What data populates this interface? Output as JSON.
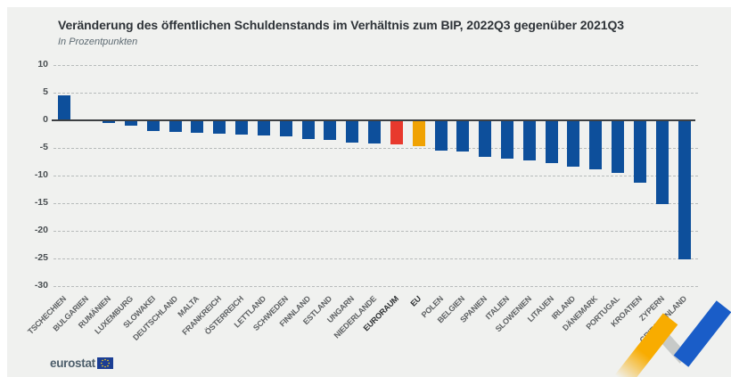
{
  "header": {
    "title": "Veränderung des öffentlichen Schuldenstands im Verhältnis zum BIP, 2022Q3 gegenüber 2021Q3",
    "subtitle": "In Prozentpunkten"
  },
  "chart_data": {
    "type": "bar",
    "title": "Veränderung des öffentlichen Schuldenstands im Verhältnis zum BIP, 2022Q3 gegenüber 2021Q3",
    "ylabel": "In Prozentpunkten",
    "ylim": [
      -30,
      10
    ],
    "yticks": [
      10,
      5,
      0,
      -5,
      -10,
      -15,
      -20,
      -25,
      -30
    ],
    "grid": "horizontal-dashed",
    "legend_position": "none",
    "categories": [
      "TSCHECHIEN",
      "BULGARIEN",
      "RUMÄNIEN",
      "LUXEMBURG",
      "SLOWAKEI",
      "DEUTSCHLAND",
      "MALTA",
      "FRANKREICH",
      "ÖSTERREICH",
      "LETTLAND",
      "SCHWEDEN",
      "FINNLAND",
      "ESTLAND",
      "UNGARN",
      "NIEDERLANDE",
      "EURORAUM",
      "EU",
      "POLEN",
      "BELGIEN",
      "SPANIEN",
      "ITALIEN",
      "SLOWENIEN",
      "LITAUEN",
      "IRLAND",
      "DÄNEMARK",
      "PORTUGAL",
      "KROATIEN",
      "ZYPERN",
      "GRIECHENLAND"
    ],
    "values": [
      4.6,
      -0.2,
      -0.5,
      -1.0,
      -2.0,
      -2.1,
      -2.2,
      -2.4,
      -2.6,
      -2.7,
      -2.9,
      -3.3,
      -3.5,
      -4.1,
      -4.2,
      -4.3,
      -4.7,
      -5.4,
      -5.7,
      -6.6,
      -7.0,
      -7.3,
      -7.7,
      -8.4,
      -8.8,
      -9.5,
      -11.3,
      -15.2,
      -25.1
    ],
    "bar_color_default": "#0d4f9b",
    "bar_color_overrides": {
      "EURORAUM": "#e8392d",
      "EU": "#f0a202"
    },
    "bold_labels": [
      "EURORAUM",
      "EU"
    ]
  },
  "footer": {
    "logo_text": "eurostat"
  },
  "colors": {
    "panel_background": "#f0f1ef",
    "zero_axis": "#3d4043",
    "gridline": "#b7bbbb",
    "ribbon_yellow": "#f8ac00",
    "ribbon_blue": "#1a5dc8",
    "eu_flag_blue": "#1b3e94",
    "eu_flag_stars": "#ffd617"
  }
}
